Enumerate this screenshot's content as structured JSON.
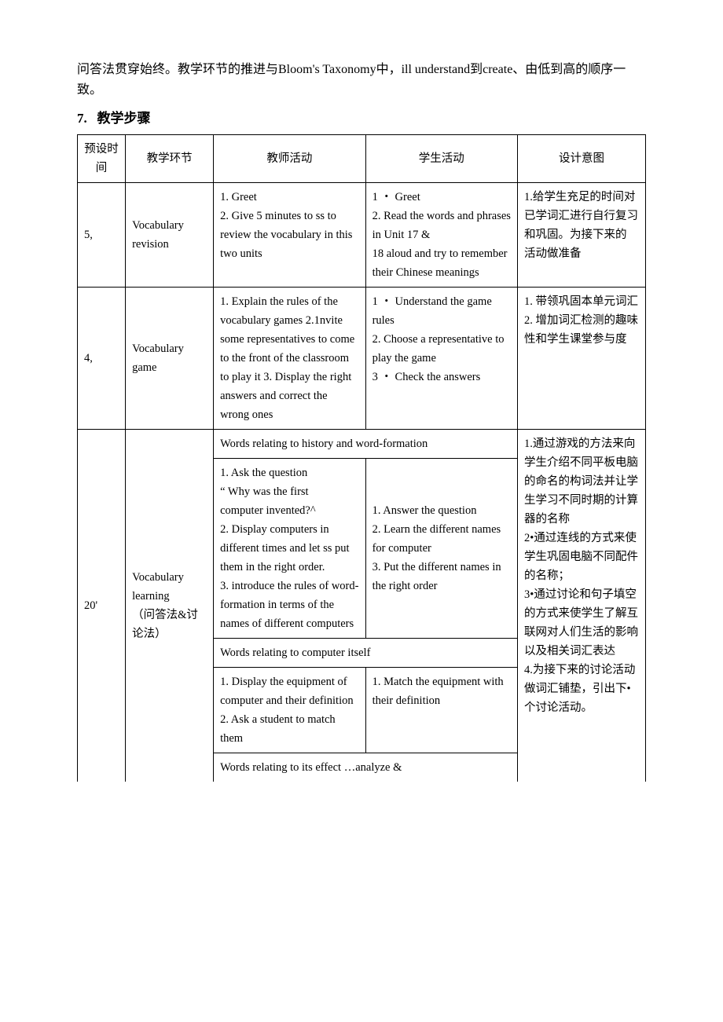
{
  "intro": {
    "p1": "问答法贯穿始终。教学环节的推进与Bloom's Taxonomy中，ill understand到create、由低到高的顺序一致。",
    "section_num": "7.",
    "section_title": "教学步骤"
  },
  "header": {
    "c0": "预设时间",
    "c1": "教学环节",
    "c2": "教师活动",
    "c3": "学生活动",
    "c4": "设计意图"
  },
  "row1": {
    "time": "5,",
    "stage": "Vocabulary revision",
    "teacher": "1. Greet\n  2.    Give 5 minutes to ss to review the vocabulary in this two units",
    "student": "1 ・ Greet\n  2. Read the words and phrases in Unit 17 &\n   18 aloud and try to remember their Chinese meanings",
    "intent": "1.给学生充足的时间对已学词汇进行自行复习和巩固。为接下来的 活动做准备"
  },
  "row2": {
    "time": "4,",
    "stage": " Vocabulary game",
    "teacher": "  1. Explain the rules of the vocabulary games 2.1nvite some representatives to come to the front of the classroom to play it 3. Display the right answers and correct the wrong ones",
    "student": "1 ・ Understand the game rules\n  2. Choose a representative to play the game\n3 ・ Check the answers",
    "intent": "1.  带领巩固本单元词汇\n2. 增加词汇检测的趣味性和学生课堂参与度"
  },
  "row3": {
    "time": "20'",
    "stage": "Vocabulary learning\n（问答法&讨论法）",
    "sub1_title": "Words relating to history and word-formation",
    "sub1_teacher": "1.     Ask the question\n   “ Why was the first\n    computer invented?^\n  2.    Display computers in different times and let ss put them in the right order.\n  3.     introduce the rules of word-formation in terms of the names of different computers",
    "sub1_student": "1. Answer the question\n  2.     Learn the different names for computer\n  3.     Put the different names in the right order",
    "sub2_title": "Words relating to computer itself",
    "sub2_teacher": "1.     Display the equipment of computer and their definition\n  2.     Ask a student to match them",
    "sub2_student": "1. Match the equipment with their definition",
    "sub3_title": "Words relating to its effect …analyze &",
    "intent": "1.通过游戏的方法来向学生介绍不同平板电脑的命名的构词法并让学生学习不同时期的计算器的名称\n2•通过连线的方式来使学生巩固电脑不同配件的名称；\n3•通过讨论和句子填空的方式来使学生了解互联网对人们生活的影响以及相关词汇表达\n4.为接下来的讨论活动做词汇铺垫，引出下•个讨论活动。"
  }
}
